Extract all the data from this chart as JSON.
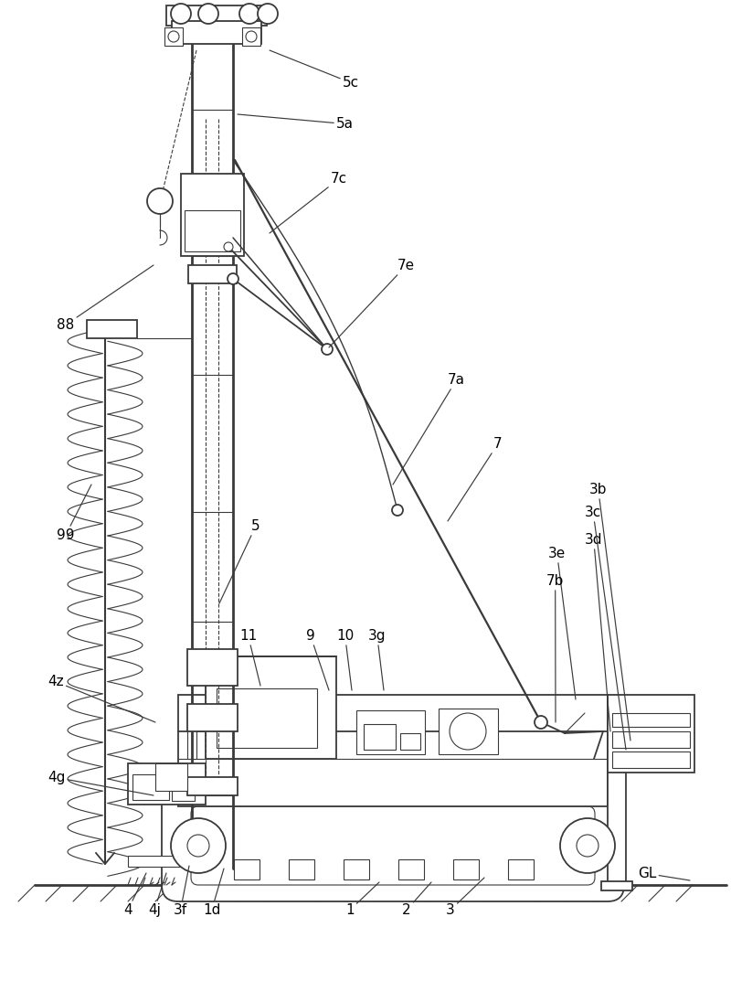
{
  "bg_color": "#ffffff",
  "line_color": "#3a3a3a",
  "lw_main": 1.3,
  "lw_thin": 0.8,
  "lw_thick": 2.0,
  "fig_width": 8.0,
  "fig_height": 10.96,
  "annotations": [
    [
      "5c",
      375,
      95,
      295,
      55
    ],
    [
      "5a",
      368,
      140,
      260,
      125
    ],
    [
      "7c",
      362,
      200,
      295,
      255
    ],
    [
      "7e",
      435,
      295,
      360,
      380
    ],
    [
      "7a",
      490,
      420,
      430,
      530
    ],
    [
      "7",
      540,
      490,
      490,
      570
    ],
    [
      "88",
      62,
      360,
      168,
      290
    ],
    [
      "99",
      62,
      590,
      100,
      530
    ],
    [
      "5",
      275,
      580,
      240,
      660
    ],
    [
      "3e",
      600,
      610,
      630,
      765
    ],
    [
      "7b",
      598,
      640,
      608,
      790
    ],
    [
      "3d",
      640,
      595,
      668,
      800
    ],
    [
      "3b",
      645,
      540,
      690,
      810
    ],
    [
      "3c",
      640,
      565,
      685,
      820
    ],
    [
      "4z",
      52,
      750,
      170,
      790
    ],
    [
      "4g",
      52,
      855,
      168,
      870
    ],
    [
      "9",
      335,
      700,
      360,
      755
    ],
    [
      "11",
      262,
      700,
      285,
      750
    ],
    [
      "10",
      368,
      700,
      385,
      755
    ],
    [
      "3g",
      403,
      700,
      420,
      755
    ],
    [
      "4",
      135,
      1000,
      160,
      955
    ],
    [
      "4j",
      162,
      1000,
      182,
      955
    ],
    [
      "3f",
      190,
      1000,
      207,
      947
    ],
    [
      "1d",
      222,
      1000,
      245,
      950
    ],
    [
      "1",
      378,
      1000,
      415,
      965
    ],
    [
      "2",
      440,
      1000,
      472,
      965
    ],
    [
      "3",
      488,
      1000,
      530,
      960
    ],
    [
      "GL",
      698,
      960,
      755,
      963
    ]
  ]
}
